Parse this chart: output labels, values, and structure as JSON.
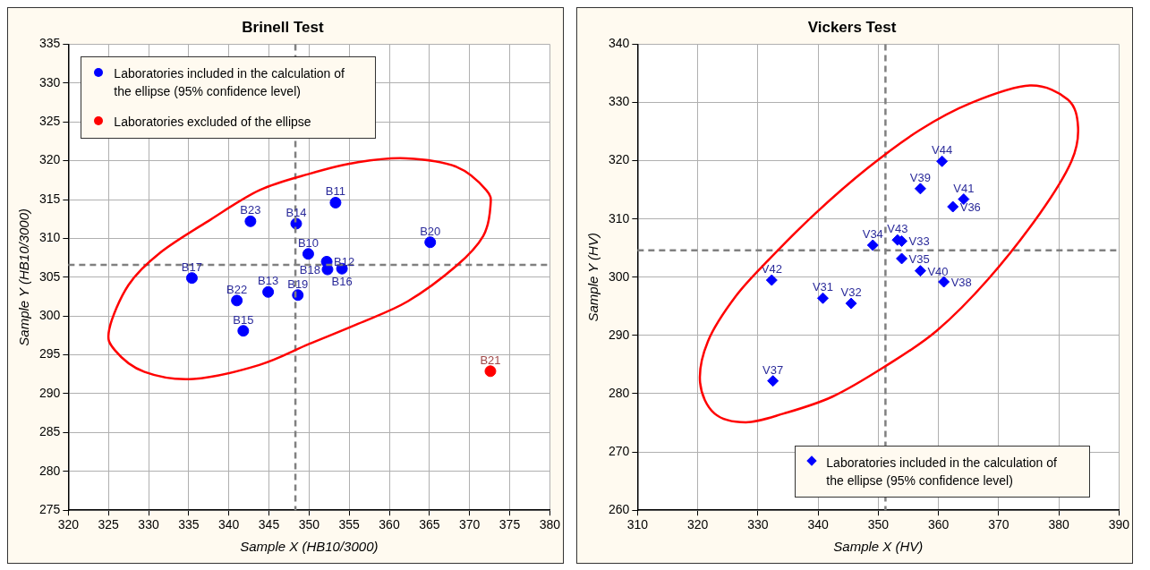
{
  "chart_data": [
    {
      "type": "scatter",
      "title": "Brinell Test",
      "xlabel": "Sample X (HB10/3000)",
      "ylabel": "Sample Y (HB10/3000)",
      "xlim": [
        320,
        380
      ],
      "ylim": [
        275,
        335
      ],
      "xticks": [
        320,
        325,
        330,
        335,
        340,
        345,
        350,
        355,
        360,
        365,
        370,
        375,
        380
      ],
      "yticks": [
        275,
        280,
        285,
        290,
        295,
        300,
        305,
        310,
        315,
        320,
        325,
        330,
        335
      ],
      "grid": true,
      "legend": "top left",
      "series": [
        {
          "name": "Laboratories included in the calculation of the ellipse (95% confidence level)",
          "color": "#0000ff",
          "marker": "circle",
          "x": [
            335.4,
            341.0,
            341.8,
            344.9,
            342.7,
            348.4,
            348.6,
            349.9,
            353.3,
            352.2,
            352.3,
            354.1,
            365.1
          ],
          "values": [
            304.9,
            302.0,
            298.1,
            303.1,
            312.2,
            311.9,
            302.7,
            308.0,
            314.6,
            307.0,
            306.0,
            306.1,
            309.5
          ],
          "value_labels": [
            "B17",
            "B22",
            "B15",
            "B13",
            "B23",
            "B14",
            "B19",
            "B10",
            "B11",
            "B12",
            "B18",
            "B16",
            "B20"
          ]
        },
        {
          "name": "Laboratories excluded of the ellipse",
          "color": "#ff0000",
          "marker": "circle",
          "x": [
            372.6
          ],
          "values": [
            292.9
          ],
          "value_labels": [
            "B21"
          ]
        }
      ],
      "ref_lines": [
        {
          "axis": "x",
          "value": 348.3,
          "color": "#808080",
          "line_style": "dashed"
        },
        {
          "axis": "y",
          "value": 306.6,
          "color": "#808080",
          "line_style": "dashed"
        }
      ]
    },
    {
      "type": "scatter",
      "title": "Vickers Test",
      "xlabel": "Sample X (HV)",
      "ylabel": "Sample Y (HV)",
      "xlim": [
        310,
        390
      ],
      "ylim": [
        260,
        340
      ],
      "xticks": [
        310,
        320,
        330,
        340,
        350,
        360,
        370,
        380,
        390
      ],
      "yticks": [
        260,
        270,
        280,
        290,
        300,
        310,
        320,
        330,
        340
      ],
      "grid": true,
      "legend": "bottom right",
      "series": [
        {
          "name": "Laboratories included in the calculation of the ellipse (95% confidence level)",
          "color": "#0000ff",
          "marker": "diamond",
          "x": [
            360.6,
            357.0,
            364.2,
            362.4,
            349.1,
            353.2,
            353.9,
            353.9,
            357.0,
            360.9,
            332.3,
            340.8,
            345.5,
            332.5
          ],
          "values": [
            319.9,
            315.2,
            313.4,
            312.1,
            305.5,
            306.4,
            306.2,
            303.2,
            301.1,
            299.2,
            299.5,
            296.4,
            295.5,
            282.2
          ],
          "value_labels": [
            "V44",
            "V39",
            "V41",
            "V36",
            "V34",
            "V43",
            "V33",
            "V35",
            "V40",
            "V38",
            "V42",
            "V31",
            "V32",
            "V37"
          ]
        }
      ],
      "ref_lines": [
        {
          "axis": "x",
          "value": 351.2,
          "color": "#808080",
          "line_style": "dashed"
        },
        {
          "axis": "y",
          "value": 304.6,
          "color": "#808080",
          "line_style": "dashed"
        }
      ]
    }
  ]
}
